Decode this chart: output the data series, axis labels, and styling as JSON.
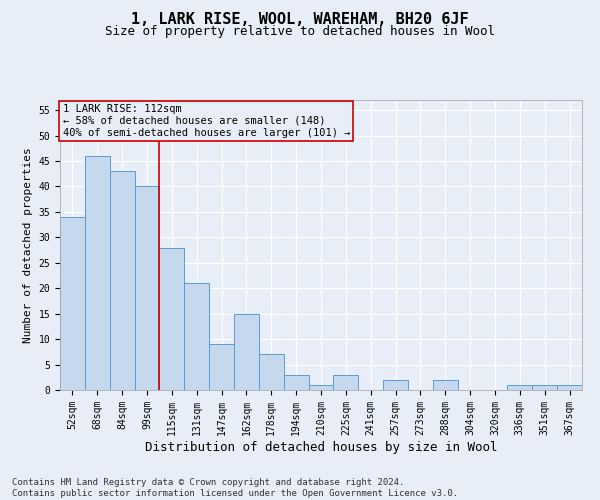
{
  "title": "1, LARK RISE, WOOL, WAREHAM, BH20 6JF",
  "subtitle": "Size of property relative to detached houses in Wool",
  "xlabel": "Distribution of detached houses by size in Wool",
  "ylabel": "Number of detached properties",
  "categories": [
    "52sqm",
    "68sqm",
    "84sqm",
    "99sqm",
    "115sqm",
    "131sqm",
    "147sqm",
    "162sqm",
    "178sqm",
    "194sqm",
    "210sqm",
    "225sqm",
    "241sqm",
    "257sqm",
    "273sqm",
    "288sqm",
    "304sqm",
    "320sqm",
    "336sqm",
    "351sqm",
    "367sqm"
  ],
  "values": [
    34,
    46,
    43,
    40,
    28,
    21,
    9,
    15,
    7,
    3,
    1,
    3,
    0,
    2,
    0,
    2,
    0,
    0,
    1,
    1,
    1
  ],
  "bar_color": "#c5d8ed",
  "bar_edge_color": "#5b9bd5",
  "bg_color": "#e8eef7",
  "grid_color": "#ffffff",
  "annotation_text": "1 LARK RISE: 112sqm\n← 58% of detached houses are smaller (148)\n40% of semi-detached houses are larger (101) →",
  "vline_index": 3.5,
  "vline_color": "#cc0000",
  "box_color": "#cc0000",
  "ylim": [
    0,
    57
  ],
  "yticks": [
    0,
    5,
    10,
    15,
    20,
    25,
    30,
    35,
    40,
    45,
    50,
    55
  ],
  "footnote": "Contains HM Land Registry data © Crown copyright and database right 2024.\nContains public sector information licensed under the Open Government Licence v3.0.",
  "title_fontsize": 11,
  "subtitle_fontsize": 9,
  "xlabel_fontsize": 9,
  "ylabel_fontsize": 8,
  "tick_fontsize": 7,
  "annot_fontsize": 7.5,
  "footnote_fontsize": 6.5
}
